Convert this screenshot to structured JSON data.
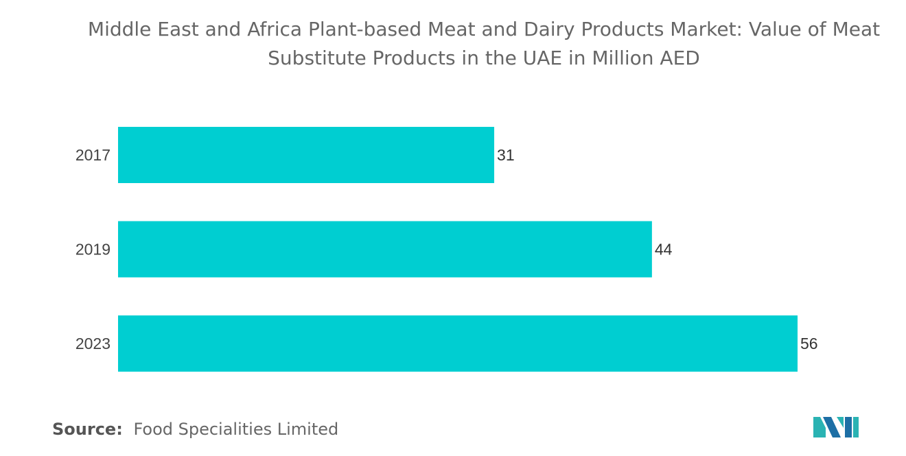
{
  "title_lines": [
    "Middle East and Africa Plant-based Meat and Dairy Products Market: Value of Meat",
    "Substitute Products in the UAE in Million AED"
  ],
  "chart_data": {
    "type": "bar",
    "orientation": "horizontal",
    "title": "Middle East and Africa Plant-based Meat and Dairy Products Market: Value of Meat Substitute Products in the UAE in Million AED",
    "categories": [
      "2017",
      "2019",
      "2023"
    ],
    "values": [
      31,
      44,
      56
    ],
    "data_labels": [
      "31",
      "44",
      "56"
    ],
    "xlim": [
      0,
      56
    ],
    "bar_color": "#00CED1",
    "grid": false,
    "legend": "none"
  },
  "source": {
    "label": "Source:",
    "text": "Food Specialities Limited"
  },
  "logo": {
    "icon": "mordor-intelligence-logo-icon",
    "colors": [
      "#2ab3b3",
      "#1d6fa5"
    ]
  }
}
